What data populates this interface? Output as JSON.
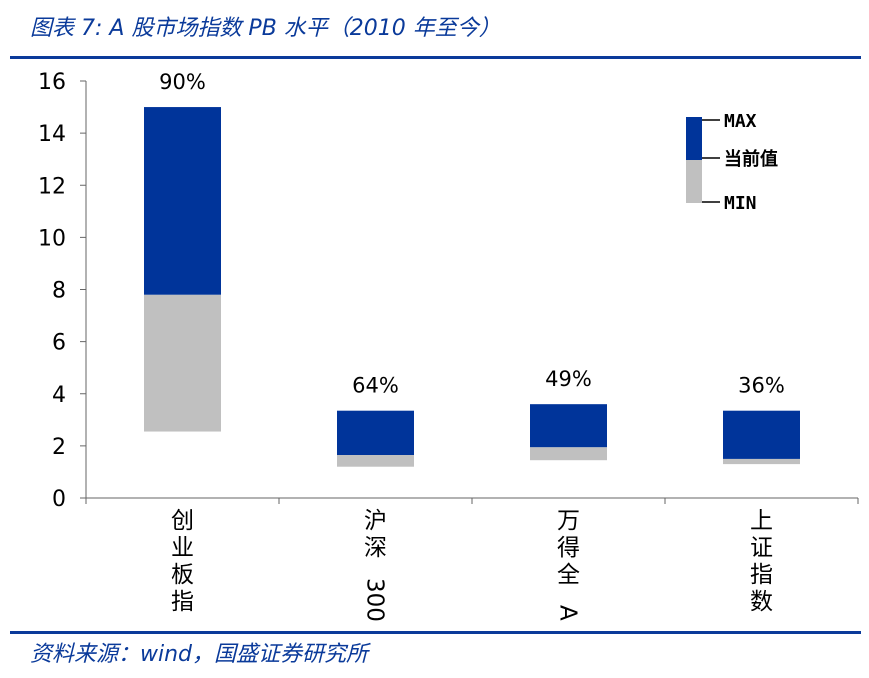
{
  "title": "图表 7:  A 股市场指数 PB 水平（2010 年至今）",
  "source": "资料来源：wind，国盛证券研究所",
  "colors": {
    "max_part": "#00349a",
    "min_part": "#c0c0c0",
    "rule": "#0a3a9a",
    "title": "#0a3a9a"
  },
  "chart_data": {
    "type": "bar",
    "subtype": "floating-stacked",
    "categories": [
      "创业板指",
      "沪深300",
      "万得全A",
      "上证指数"
    ],
    "series": [
      {
        "name": "MIN",
        "values": [
          2.55,
          1.2,
          1.45,
          1.3
        ]
      },
      {
        "name": "当前值",
        "values": [
          7.8,
          1.65,
          1.95,
          1.5
        ]
      },
      {
        "name": "MAX",
        "values": [
          15.0,
          3.35,
          3.6,
          3.35
        ]
      }
    ],
    "percentile_labels": [
      "90%",
      "64%",
      "49%",
      "36%"
    ],
    "ylim": [
      0,
      16
    ],
    "yticks": [
      0,
      2,
      4,
      6,
      8,
      10,
      12,
      14,
      16
    ],
    "grid": false,
    "legend": {
      "position": "top-right",
      "labels": {
        "max": "MAX",
        "current": "当前值",
        "min": "MIN"
      }
    }
  }
}
